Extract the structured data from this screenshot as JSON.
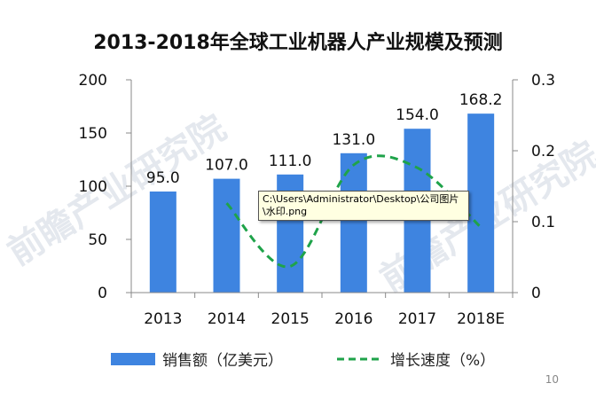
{
  "chart_data": {
    "type": "bar",
    "title": "2013-2018年全球工业机器人产业规模及预测",
    "categories": [
      "2013",
      "2014",
      "2015",
      "2016",
      "2017",
      "2018E"
    ],
    "series": [
      {
        "name": "销售额（亿美元）",
        "type": "bar",
        "axis": "left",
        "color": "#3e84e0",
        "values": [
          95.0,
          107.0,
          111.0,
          131.0,
          154.0,
          168.2
        ]
      },
      {
        "name": "增长速度（%）",
        "type": "line",
        "style": "dashed",
        "axis": "right",
        "color": "#1fa34a",
        "values": [
          null,
          0.126,
          0.037,
          0.18,
          0.176,
          0.092
        ]
      }
    ],
    "ylim_left": [
      0,
      200
    ],
    "yticks_left": [
      "0",
      "50",
      "100",
      "150",
      "200"
    ],
    "ylim_right": [
      0,
      0.3
    ],
    "yticks_right": [
      "0",
      "0.1",
      "0.2",
      "0.3"
    ],
    "data_labels": [
      "95.0",
      "107.0",
      "111.0",
      "131.0",
      "154.0",
      "168.2"
    ],
    "legend_position": "bottom",
    "grid": false
  },
  "tooltip": {
    "line1": "C:\\Users\\Administrator\\Desktop\\公司图片",
    "line2": "\\水印.png"
  },
  "watermark_text": "前瞻产业研究院",
  "page_number": "10"
}
